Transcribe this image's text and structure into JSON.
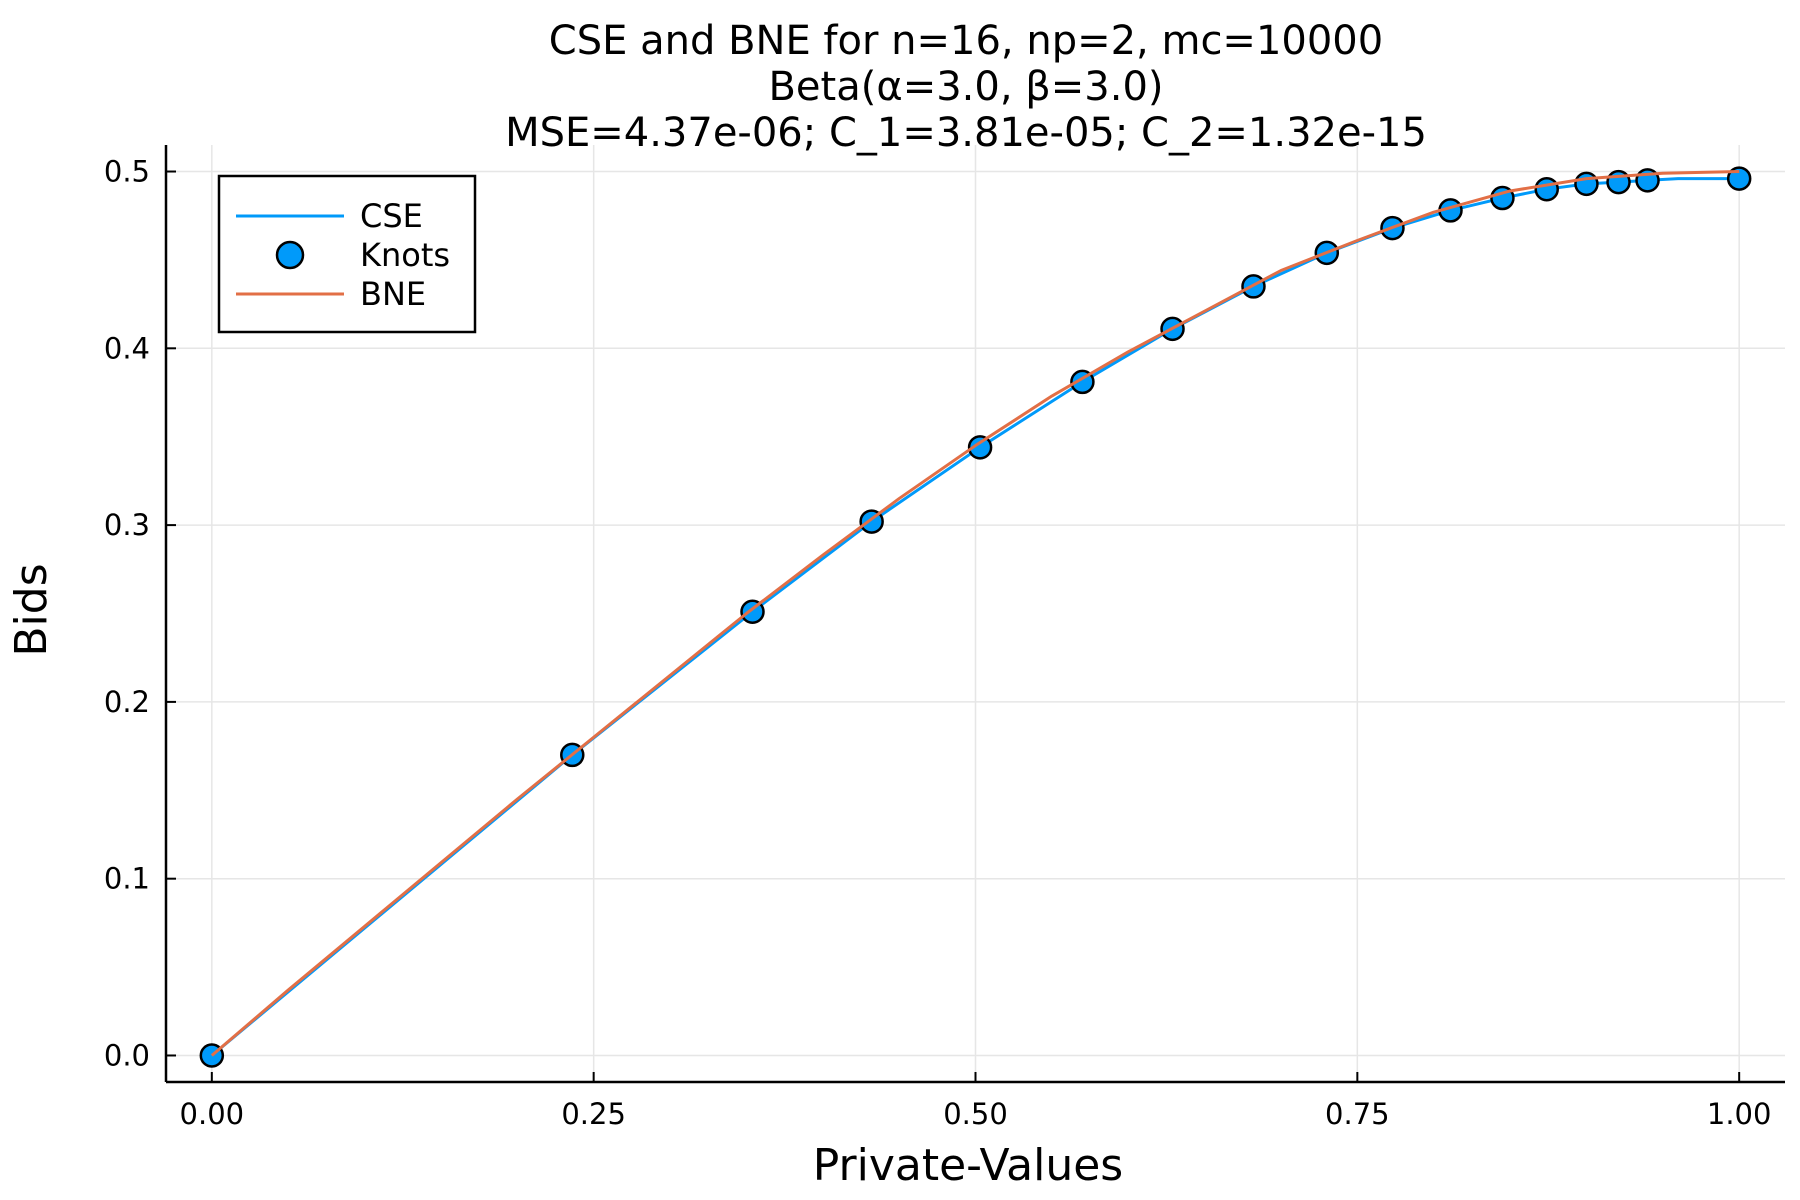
{
  "chart_data": {
    "type": "line",
    "title_lines": [
      "CSE and BNE for n=16, np=2, mc=10000",
      "Beta(α=3.0, β=3.0)",
      "MSE=4.37e-06; C_1=3.81e-05; C_2=1.32e-15"
    ],
    "xlabel": "Private-Values",
    "ylabel": "Bids",
    "xlim": [
      -0.03,
      1.03
    ],
    "ylim": [
      -0.015,
      0.515
    ],
    "xticks": [
      0.0,
      0.25,
      0.5,
      0.75,
      1.0
    ],
    "xtick_labels": [
      "0.00",
      "0.25",
      "0.50",
      "0.75",
      "1.00"
    ],
    "yticks": [
      0.0,
      0.1,
      0.2,
      0.3,
      0.4,
      0.5
    ],
    "ytick_labels": [
      "0.0",
      "0.1",
      "0.2",
      "0.3",
      "0.4",
      "0.5"
    ],
    "grid": true,
    "legend_position": "top-left",
    "series": [
      {
        "name": "CSE",
        "kind": "line",
        "color": "#009AFA",
        "x": [
          0.0,
          0.236,
          0.354,
          0.432,
          0.503,
          0.57,
          0.629,
          0.682,
          0.73,
          0.773,
          0.811,
          0.845,
          0.874,
          0.9,
          0.921,
          0.94,
          0.96,
          1.0
        ],
        "y": [
          0.0,
          0.17,
          0.251,
          0.302,
          0.344,
          0.381,
          0.411,
          0.435,
          0.454,
          0.468,
          0.478,
          0.485,
          0.49,
          0.493,
          0.494,
          0.495,
          0.496,
          0.496
        ]
      },
      {
        "name": "Knots",
        "kind": "scatter",
        "color": "#009AFA",
        "x": [
          0.0,
          0.236,
          0.354,
          0.432,
          0.503,
          0.57,
          0.629,
          0.682,
          0.73,
          0.773,
          0.811,
          0.845,
          0.874,
          0.9,
          0.921,
          0.94,
          1.0
        ],
        "y": [
          0.0,
          0.17,
          0.251,
          0.302,
          0.344,
          0.381,
          0.411,
          0.435,
          0.454,
          0.468,
          0.478,
          0.485,
          0.49,
          0.493,
          0.494,
          0.495,
          0.496
        ]
      },
      {
        "name": "BNE",
        "kind": "line",
        "color": "#E26F46",
        "x": [
          0.0,
          0.05,
          0.1,
          0.15,
          0.2,
          0.25,
          0.3,
          0.35,
          0.4,
          0.45,
          0.5,
          0.55,
          0.6,
          0.65,
          0.7,
          0.75,
          0.8,
          0.85,
          0.9,
          0.95,
          1.0
        ],
        "y": [
          0.0,
          0.037,
          0.073,
          0.109,
          0.145,
          0.18,
          0.215,
          0.25,
          0.283,
          0.315,
          0.345,
          0.373,
          0.398,
          0.421,
          0.444,
          0.461,
          0.477,
          0.489,
          0.496,
          0.499,
          0.5
        ]
      }
    ]
  }
}
